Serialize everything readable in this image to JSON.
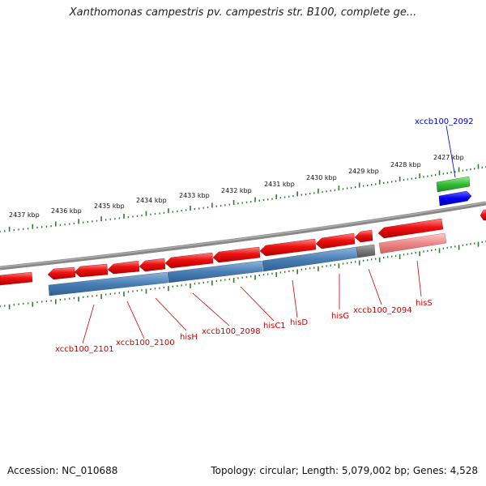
{
  "title": "Xanthomonas campestris pv. campestris str. B100, complete ge...",
  "footer": {
    "accession": "Accession: NC_010688",
    "summary": "Topology: circular; Length: 5,079,002 bp; Genes: 4,528"
  },
  "colors": {
    "backbone": "#888888",
    "tick": "#2d7d2d",
    "gene_red": "#ee1111",
    "gene_pink": "#ee8888",
    "gene_blue": "#4a7fb5",
    "gene_gray": "#777777",
    "gene_green": "#33bb33",
    "gene_darkblue": "#0000ee",
    "label_red": "#cc0000",
    "label_blue": "#0000cc"
  },
  "scale_labels": [
    "2437 kbp",
    "2436 kbp",
    "2435 kbp",
    "2434 kbp",
    "2433 kbp",
    "2432 kbp",
    "2431 kbp",
    "2430 kbp",
    "2429 kbp",
    "2428 kbp",
    "2427 kbp"
  ],
  "gene_labels": [
    {
      "text": "xccb100_2092",
      "color": "blue"
    },
    {
      "text": "xccb100_2101",
      "color": "red"
    },
    {
      "text": "xccb100_2100",
      "color": "red"
    },
    {
      "text": "hisH",
      "color": "red"
    },
    {
      "text": "xccb100_2098",
      "color": "red"
    },
    {
      "text": "hisC1",
      "color": "red"
    },
    {
      "text": "hisD",
      "color": "red"
    },
    {
      "text": "hisG",
      "color": "red"
    },
    {
      "text": "xccb100_2094",
      "color": "red"
    },
    {
      "text": "hisS",
      "color": "red"
    }
  ]
}
